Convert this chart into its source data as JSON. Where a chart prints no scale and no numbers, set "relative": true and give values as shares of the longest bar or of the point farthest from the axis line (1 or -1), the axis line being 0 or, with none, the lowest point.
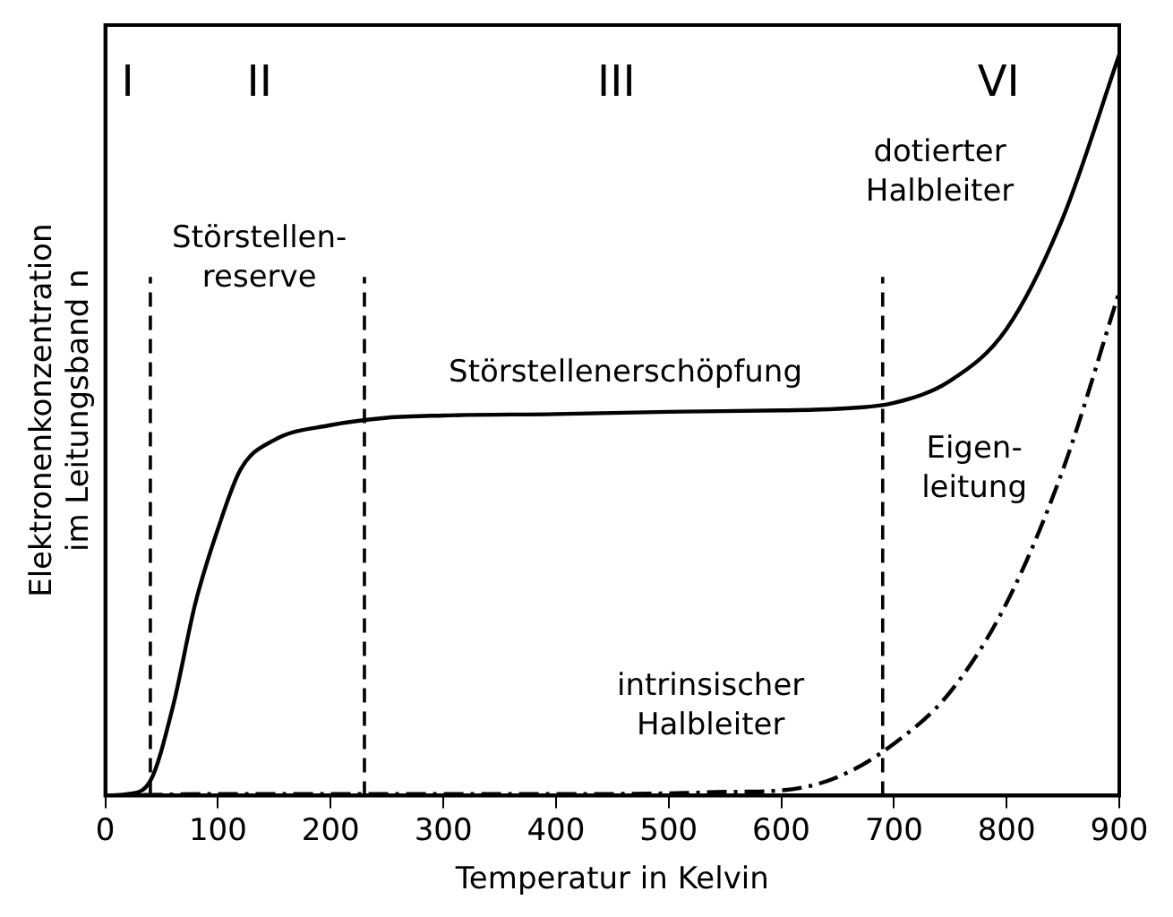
{
  "chart_data": {
    "type": "line",
    "relative": true,
    "xlabel": "Temperatur in Kelvin",
    "ylabel": "Elektronenkonzentration\nim Leitungsband n",
    "xlim": [
      0,
      900
    ],
    "xticks": [
      0,
      100,
      200,
      300,
      400,
      500,
      600,
      700,
      800,
      900
    ],
    "grid": false,
    "legend": false,
    "marker": "none",
    "series": [
      {
        "color": "#000000",
        "line_style": "solid",
        "x": [
          0,
          20,
          40,
          60,
          80,
          100,
          120,
          150,
          200,
          250,
          300,
          400,
          500,
          600,
          650,
          700,
          750,
          800,
          850,
          900
        ],
        "values": [
          0,
          0.002,
          0.02,
          0.12,
          0.26,
          0.36,
          0.44,
          0.48,
          0.5,
          0.51,
          0.513,
          0.515,
          0.518,
          0.52,
          0.522,
          0.53,
          0.56,
          0.63,
          0.78,
          1
        ]
      },
      {
        "color": "#000000",
        "line_style": "dashed",
        "x": [
          0,
          100,
          200,
          300,
          400,
          500,
          550,
          600,
          650,
          700,
          750,
          800,
          850,
          900
        ],
        "values": [
          0,
          0.002,
          0.002,
          0.002,
          0.002,
          0.003,
          0.005,
          0.007,
          0.025,
          0.07,
          0.14,
          0.26,
          0.44,
          0.68
        ]
      }
    ],
    "ref_lines": [
      {
        "axis": "x",
        "value": 40,
        "line_style": "dashed",
        "color": "#000000"
      },
      {
        "axis": "x",
        "value": 230,
        "line_style": "dashed",
        "color": "#000000"
      },
      {
        "axis": "x",
        "value": 690,
        "line_style": "dashed",
        "color": "#000000"
      }
    ],
    "annotations": [
      "I",
      "II",
      "III",
      "VI",
      "Störstellen-\nreserve",
      "Störstellenerschöpfung",
      "Eigen-\nleitung",
      "dotierter\nHalbleiter",
      "intrinsischer\nHalbleiter"
    ]
  }
}
